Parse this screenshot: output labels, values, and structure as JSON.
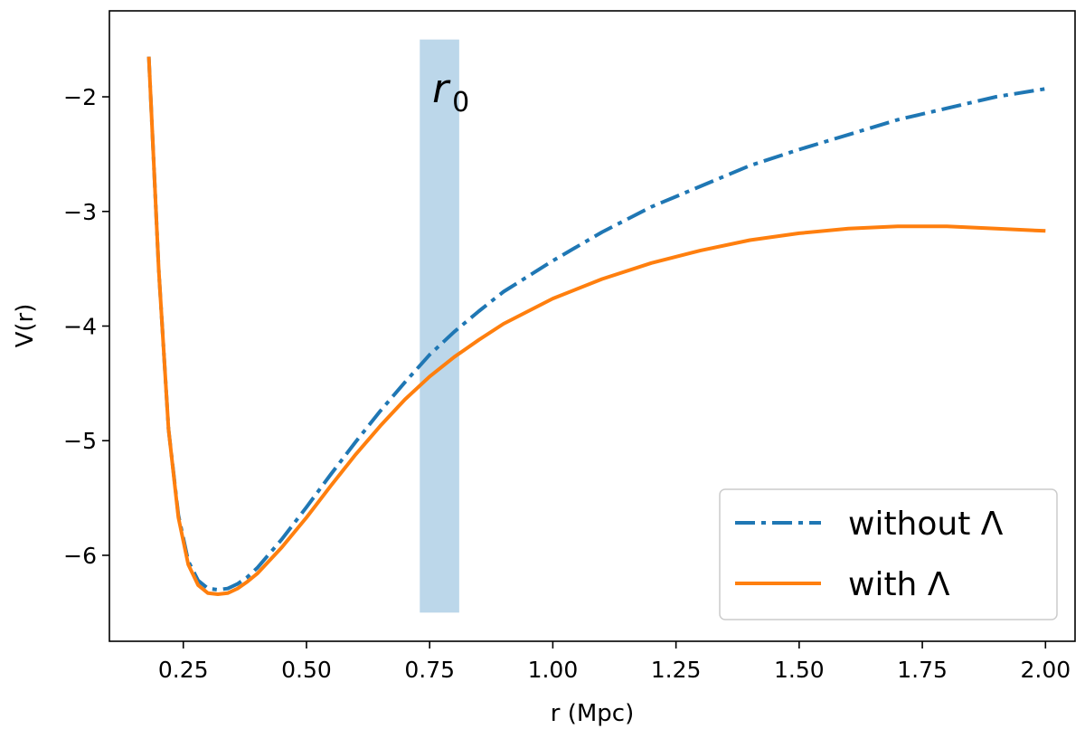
{
  "chart_data": {
    "type": "line",
    "xlabel": "r (Mpc)",
    "ylabel": "V(r)",
    "xlim": [
      0.1,
      2.06
    ],
    "ylim": [
      -6.75,
      -1.25
    ],
    "xticks": [
      0.25,
      0.5,
      0.75,
      1.0,
      1.25,
      1.5,
      1.75,
      2.0
    ],
    "xtick_labels": [
      "0.25",
      "0.50",
      "0.75",
      "1.00",
      "1.25",
      "1.50",
      "1.75",
      "2.00"
    ],
    "yticks": [
      -6,
      -5,
      -4,
      -3,
      -2
    ],
    "ytick_labels": [
      "−6",
      "−5",
      "−4",
      "−3",
      "−2"
    ],
    "grid": false,
    "legend_position": "lower-right",
    "band": {
      "x_start": 0.73,
      "x_end": 0.81,
      "y_start": -6.5,
      "y_end": -1.5,
      "color": "#bcd7ea"
    },
    "annotation": {
      "text": "r",
      "subscript": "0",
      "x": 0.77,
      "y": -2.0
    },
    "series": [
      {
        "name": "without Λ",
        "style": "dashdot",
        "color": "#1f77b4",
        "x": [
          0.18,
          0.2,
          0.22,
          0.24,
          0.26,
          0.28,
          0.3,
          0.32,
          0.34,
          0.36,
          0.38,
          0.4,
          0.45,
          0.5,
          0.55,
          0.6,
          0.65,
          0.7,
          0.75,
          0.8,
          0.85,
          0.9,
          1.0,
          1.1,
          1.2,
          1.3,
          1.4,
          1.5,
          1.6,
          1.7,
          1.8,
          1.9,
          2.0
        ],
        "y": [
          -1.65,
          -3.5,
          -4.9,
          -5.65,
          -6.05,
          -6.22,
          -6.29,
          -6.3,
          -6.29,
          -6.25,
          -6.19,
          -6.11,
          -5.86,
          -5.58,
          -5.29,
          -5.01,
          -4.74,
          -4.49,
          -4.25,
          -4.05,
          -3.87,
          -3.7,
          -3.43,
          -3.18,
          -2.96,
          -2.78,
          -2.6,
          -2.46,
          -2.33,
          -2.2,
          -2.1,
          -2.0,
          -1.93
        ]
      },
      {
        "name": "with Λ",
        "style": "solid",
        "color": "#ff7f0e",
        "x": [
          0.18,
          0.2,
          0.22,
          0.24,
          0.26,
          0.28,
          0.3,
          0.32,
          0.34,
          0.36,
          0.38,
          0.4,
          0.45,
          0.5,
          0.55,
          0.6,
          0.65,
          0.7,
          0.75,
          0.8,
          0.85,
          0.9,
          1.0,
          1.1,
          1.2,
          1.3,
          1.4,
          1.5,
          1.6,
          1.7,
          1.75,
          1.8,
          1.9,
          2.0
        ],
        "y": [
          -1.65,
          -3.5,
          -4.9,
          -5.67,
          -6.08,
          -6.26,
          -6.33,
          -6.34,
          -6.33,
          -6.29,
          -6.23,
          -6.16,
          -5.93,
          -5.67,
          -5.39,
          -5.12,
          -4.87,
          -4.64,
          -4.44,
          -4.27,
          -4.12,
          -3.98,
          -3.76,
          -3.59,
          -3.45,
          -3.34,
          -3.25,
          -3.19,
          -3.15,
          -3.13,
          -3.13,
          -3.13,
          -3.15,
          -3.17
        ]
      }
    ]
  }
}
